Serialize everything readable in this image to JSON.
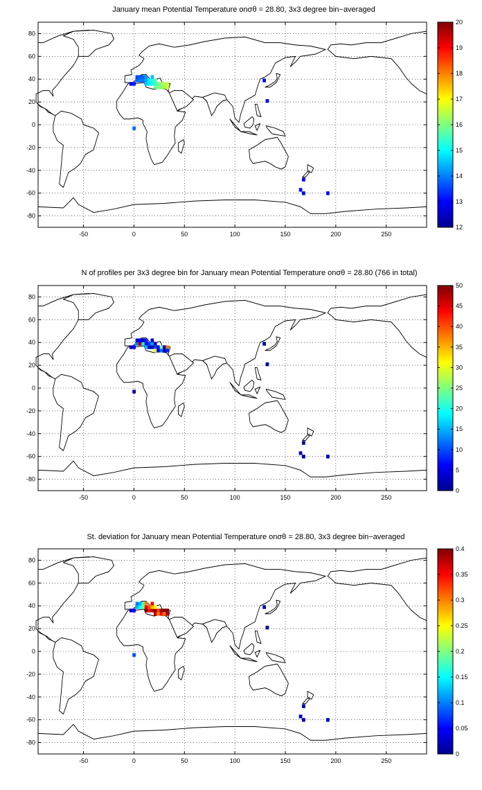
{
  "chart_data": [
    {
      "type": "heatmap",
      "panel_id": "mean",
      "title": "January mean Potential Temperature onσθ = 28.80, 3x3 degree bin−averaged",
      "xlim": [
        -95,
        290
      ],
      "ylim": [
        -90,
        90
      ],
      "xticks": [
        -50,
        0,
        50,
        100,
        150,
        200,
        250
      ],
      "yticks": [
        -80,
        -60,
        -40,
        -20,
        0,
        20,
        40,
        60,
        80
      ],
      "colorbar": {
        "min": 12,
        "max": 20,
        "ticks": [
          12,
          13,
          14,
          15,
          16,
          17,
          18,
          19,
          20
        ]
      },
      "grid": true,
      "cells": [
        [
          -3,
          36,
          13.0
        ],
        [
          0,
          36,
          13.2
        ],
        [
          3,
          39,
          13.8
        ],
        [
          3,
          42,
          13.6
        ],
        [
          6,
          39,
          13.9
        ],
        [
          6,
          42,
          13.7
        ],
        [
          9,
          39,
          14.0
        ],
        [
          9,
          42,
          13.8
        ],
        [
          12,
          39,
          14.3
        ],
        [
          12,
          42,
          14.2
        ],
        [
          12,
          36,
          14.6
        ],
        [
          15,
          36,
          14.8
        ],
        [
          15,
          39,
          14.9
        ],
        [
          18,
          36,
          15.0
        ],
        [
          18,
          39,
          15.3
        ],
        [
          18,
          42,
          14.5
        ],
        [
          21,
          36,
          15.5
        ],
        [
          21,
          39,
          15.6
        ],
        [
          21,
          33,
          15.8
        ],
        [
          24,
          36,
          15.9
        ],
        [
          24,
          33,
          16.0
        ],
        [
          27,
          36,
          16.2
        ],
        [
          27,
          33,
          16.1
        ],
        [
          30,
          36,
          16.4
        ],
        [
          30,
          33,
          16.3
        ],
        [
          33,
          36,
          16.5
        ],
        [
          33,
          33,
          16.6
        ],
        [
          0,
          -3,
          13.8
        ],
        [
          129,
          39,
          13.0
        ],
        [
          132,
          21,
          13.1
        ],
        [
          168,
          -48,
          13.0
        ],
        [
          165,
          -57,
          13.1
        ],
        [
          168,
          -60,
          13.0
        ],
        [
          192,
          -60,
          13.0
        ]
      ]
    },
    {
      "type": "heatmap",
      "panel_id": "count",
      "title": "N of profiles per 3x3 degree bin for January mean Potential Temperature onσθ = 28.80 (766 in total)",
      "xlim": [
        -95,
        290
      ],
      "ylim": [
        -90,
        90
      ],
      "xticks": [
        -50,
        0,
        50,
        100,
        150,
        200,
        250
      ],
      "yticks": [
        -80,
        -60,
        -40,
        -20,
        0,
        20,
        40,
        60,
        80
      ],
      "colorbar": {
        "min": 0,
        "max": 50,
        "ticks": [
          0,
          5,
          10,
          15,
          20,
          25,
          30,
          35,
          40,
          45,
          50
        ]
      },
      "grid": true,
      "cells": [
        [
          -3,
          36,
          3
        ],
        [
          0,
          36,
          5
        ],
        [
          3,
          39,
          12
        ],
        [
          3,
          42,
          4
        ],
        [
          6,
          39,
          48
        ],
        [
          6,
          42,
          6
        ],
        [
          9,
          39,
          20
        ],
        [
          9,
          42,
          3
        ],
        [
          12,
          39,
          5
        ],
        [
          12,
          42,
          8
        ],
        [
          12,
          36,
          15
        ],
        [
          15,
          36,
          2
        ],
        [
          15,
          39,
          9
        ],
        [
          18,
          36,
          3
        ],
        [
          18,
          39,
          14
        ],
        [
          18,
          42,
          4
        ],
        [
          21,
          36,
          10
        ],
        [
          21,
          39,
          3
        ],
        [
          21,
          33,
          30
        ],
        [
          24,
          36,
          6
        ],
        [
          24,
          33,
          5
        ],
        [
          27,
          36,
          25
        ],
        [
          27,
          33,
          12
        ],
        [
          30,
          36,
          4
        ],
        [
          30,
          33,
          3
        ],
        [
          33,
          36,
          38
        ],
        [
          33,
          33,
          8
        ],
        [
          0,
          -3,
          2
        ],
        [
          129,
          39,
          2
        ],
        [
          132,
          21,
          2
        ],
        [
          168,
          -48,
          2
        ],
        [
          165,
          -57,
          3
        ],
        [
          168,
          -60,
          2
        ],
        [
          192,
          -60,
          3
        ]
      ]
    },
    {
      "type": "heatmap",
      "panel_id": "std",
      "title": "St. deviation for January mean Potential Temperature onσθ = 28.80, 3x3 degree bin−averaged",
      "xlim": [
        -95,
        290
      ],
      "ylim": [
        -90,
        90
      ],
      "xticks": [
        -50,
        0,
        50,
        100,
        150,
        200,
        250
      ],
      "yticks": [
        -80,
        -60,
        -40,
        -20,
        0,
        20,
        40,
        60,
        80
      ],
      "colorbar": {
        "min": 0,
        "max": 0.4,
        "ticks": [
          0,
          0.05,
          0.1,
          0.15,
          0.2,
          0.25,
          0.3,
          0.35,
          0.4
        ]
      },
      "grid": true,
      "cells": [
        [
          -3,
          36,
          0.03
        ],
        [
          0,
          36,
          0.05
        ],
        [
          3,
          39,
          0.12
        ],
        [
          3,
          42,
          0.1
        ],
        [
          6,
          39,
          0.15
        ],
        [
          6,
          42,
          0.12
        ],
        [
          9,
          39,
          0.2
        ],
        [
          9,
          42,
          0.18
        ],
        [
          12,
          39,
          0.36
        ],
        [
          12,
          42,
          0.3
        ],
        [
          12,
          36,
          0.4
        ],
        [
          15,
          36,
          0.35
        ],
        [
          15,
          39,
          0.32
        ],
        [
          18,
          36,
          0.38
        ],
        [
          18,
          39,
          0.28
        ],
        [
          18,
          42,
          0.35
        ],
        [
          21,
          36,
          0.4
        ],
        [
          21,
          39,
          0.25
        ],
        [
          21,
          33,
          0.37
        ],
        [
          24,
          36,
          0.33
        ],
        [
          24,
          33,
          0.3
        ],
        [
          27,
          36,
          0.39
        ],
        [
          27,
          33,
          0.35
        ],
        [
          30,
          36,
          0.4
        ],
        [
          30,
          33,
          0.3
        ],
        [
          33,
          36,
          0.4
        ],
        [
          33,
          33,
          0.38
        ],
        [
          0,
          -3,
          0.08
        ],
        [
          129,
          39,
          0.02
        ],
        [
          132,
          21,
          0.02
        ],
        [
          168,
          -48,
          0.02
        ],
        [
          165,
          -57,
          0.03
        ],
        [
          168,
          -60,
          0.02
        ],
        [
          192,
          -60,
          0.03
        ]
      ]
    }
  ]
}
